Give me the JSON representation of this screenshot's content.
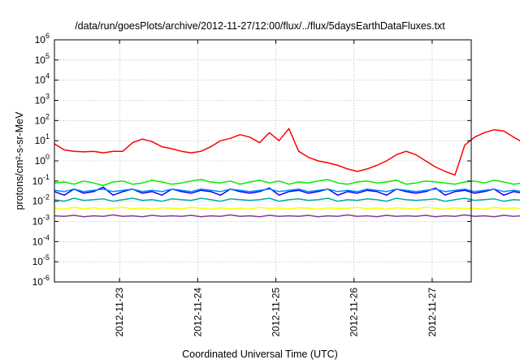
{
  "chart_data": {
    "type": "line",
    "title": "/data/run/goesPlots/archive/2012-11-27/12:00/flux/../flux/5daysEarthDataFluxes.txt",
    "xlabel": "Coordinated Universal Time (UTC)",
    "ylabel": "protons/cm²-s-sr-MeV",
    "xlim": [
      "2012-11-22T04:00",
      "2012-11-27T12:00"
    ],
    "ylim": [
      1e-06,
      1000000.0
    ],
    "yscale": "log",
    "grid": true,
    "xticks": [
      "2012-11-23",
      "2012-11-24",
      "2012-11-25",
      "2012-11-26",
      "2012-11-27"
    ],
    "yticks": [
      {
        "base": "10",
        "exp": "-6"
      },
      {
        "base": "10",
        "exp": "-5"
      },
      {
        "base": "10",
        "exp": "-4"
      },
      {
        "base": "10",
        "exp": "-3"
      },
      {
        "base": "10",
        "exp": "-2"
      },
      {
        "base": "10",
        "exp": "-1"
      },
      {
        "base": "10",
        "exp": "0"
      },
      {
        "base": "10",
        "exp": "1"
      },
      {
        "base": "10",
        "exp": "2"
      },
      {
        "base": "10",
        "exp": "3"
      },
      {
        "base": "10",
        "exp": "4"
      },
      {
        "base": "10",
        "exp": "5"
      },
      {
        "base": "10",
        "exp": "6"
      }
    ],
    "x_step_hours": 3,
    "series": [
      {
        "color": "#ff0000",
        "values": [
          7,
          3.5,
          3,
          2.8,
          3,
          2.5,
          3,
          3,
          8,
          12,
          9,
          5,
          4,
          3,
          2.5,
          3,
          5,
          10,
          13,
          20,
          15,
          8,
          25,
          10,
          40,
          3,
          1.5,
          1,
          0.8,
          0.6,
          0.4,
          0.3,
          0.4,
          0.6,
          1,
          2,
          3,
          2,
          1,
          0.5,
          0.3,
          0.2,
          6,
          15,
          25,
          35,
          30,
          15,
          8,
          3,
          1,
          0.6,
          0.4,
          0.5,
          0.8,
          1.5
        ]
      },
      {
        "color": "#00ee00",
        "values": [
          0.08,
          0.09,
          0.07,
          0.1,
          0.08,
          0.06,
          0.09,
          0.1,
          0.07,
          0.08,
          0.11,
          0.09,
          0.07,
          0.08,
          0.1,
          0.12,
          0.09,
          0.08,
          0.1,
          0.07,
          0.09,
          0.11,
          0.08,
          0.1,
          0.07,
          0.09,
          0.08,
          0.1,
          0.12,
          0.08,
          0.07,
          0.09,
          0.1,
          0.08,
          0.09,
          0.11,
          0.07,
          0.08,
          0.1,
          0.09,
          0.08,
          0.07,
          0.09,
          0.1,
          0.08,
          0.11,
          0.09,
          0.07,
          0.08,
          0.1,
          0.09,
          0.08,
          0.1,
          0.07,
          0.09,
          0.08
        ]
      },
      {
        "color": "#0000ff",
        "values": [
          0.03,
          0.02,
          0.04,
          0.025,
          0.03,
          0.05,
          0.02,
          0.03,
          0.04,
          0.025,
          0.03,
          0.02,
          0.04,
          0.03,
          0.025,
          0.035,
          0.03,
          0.02,
          0.04,
          0.03,
          0.025,
          0.03,
          0.045,
          0.02,
          0.03,
          0.035,
          0.025,
          0.03,
          0.04,
          0.02,
          0.03,
          0.025,
          0.035,
          0.03,
          0.02,
          0.04,
          0.03,
          0.025,
          0.03,
          0.045,
          0.02,
          0.03,
          0.035,
          0.025,
          0.03,
          0.04,
          0.02,
          0.03,
          0.025,
          0.035,
          0.03,
          0.02,
          0.04,
          0.03,
          0.025,
          0.03
        ]
      },
      {
        "color": "#0088ff",
        "values": [
          0.035,
          0.03,
          0.04,
          0.03,
          0.035,
          0.04,
          0.03,
          0.035,
          0.04,
          0.03,
          0.035,
          0.03,
          0.04,
          0.035,
          0.03,
          0.04,
          0.035,
          0.03,
          0.04,
          0.035,
          0.03,
          0.035,
          0.04,
          0.03,
          0.035,
          0.04,
          0.03,
          0.035,
          0.04,
          0.03,
          0.035,
          0.03,
          0.04,
          0.035,
          0.03,
          0.04,
          0.035,
          0.03,
          0.035,
          0.04,
          0.03,
          0.035,
          0.04,
          0.03,
          0.035,
          0.04,
          0.03,
          0.035,
          0.03,
          0.04,
          0.035,
          0.03,
          0.04,
          0.035,
          0.03,
          0.035
        ]
      },
      {
        "color": "#00aaaa",
        "values": [
          0.012,
          0.01,
          0.014,
          0.011,
          0.012,
          0.013,
          0.01,
          0.012,
          0.014,
          0.011,
          0.012,
          0.01,
          0.013,
          0.012,
          0.011,
          0.014,
          0.012,
          0.01,
          0.013,
          0.012,
          0.011,
          0.012,
          0.014,
          0.01,
          0.012,
          0.013,
          0.011,
          0.012,
          0.014,
          0.01,
          0.012,
          0.011,
          0.013,
          0.012,
          0.01,
          0.014,
          0.012,
          0.011,
          0.012,
          0.013,
          0.01,
          0.012,
          0.014,
          0.011,
          0.012,
          0.013,
          0.01,
          0.012,
          0.011,
          0.014,
          0.012,
          0.01,
          0.013,
          0.012,
          0.011,
          0.012
        ]
      },
      {
        "color": "#ffff00",
        "values": [
          0.0045,
          0.004,
          0.005,
          0.0042,
          0.0048,
          0.004,
          0.0045,
          0.005,
          0.0042,
          0.0046,
          0.004,
          0.0048,
          0.0044,
          0.0042,
          0.005,
          0.0045,
          0.004,
          0.0047,
          0.0043,
          0.0045,
          0.004,
          0.005,
          0.0044,
          0.0046,
          0.0042,
          0.0048,
          0.0045,
          0.004,
          0.0047,
          0.0043,
          0.0045,
          0.005,
          0.0042,
          0.0046,
          0.004,
          0.0048,
          0.0044,
          0.0042,
          0.005,
          0.0045,
          0.004,
          0.0047,
          0.0043,
          0.0045,
          0.004,
          0.005,
          0.0044,
          0.0046,
          0.0042,
          0.0048,
          0.0045,
          0.004,
          0.0047,
          0.0043,
          0.0045,
          0.0046
        ]
      },
      {
        "color": "#8b3a8b",
        "values": [
          0.0019,
          0.0018,
          0.002,
          0.0017,
          0.0019,
          0.0018,
          0.0021,
          0.0018,
          0.0019,
          0.0017,
          0.002,
          0.0018,
          0.0019,
          0.0018,
          0.002,
          0.0017,
          0.0019,
          0.0018,
          0.0021,
          0.0018,
          0.0019,
          0.0017,
          0.002,
          0.0018,
          0.0019,
          0.0018,
          0.002,
          0.0017,
          0.0019,
          0.0018,
          0.0021,
          0.0018,
          0.0019,
          0.0017,
          0.002,
          0.0018,
          0.0019,
          0.0018,
          0.002,
          0.0017,
          0.0019,
          0.0018,
          0.0021,
          0.0018,
          0.0019,
          0.0017,
          0.002,
          0.0018,
          0.0019,
          0.0018,
          0.002,
          0.0017,
          0.0019,
          0.0018,
          0.0021,
          0.0018
        ]
      }
    ]
  }
}
